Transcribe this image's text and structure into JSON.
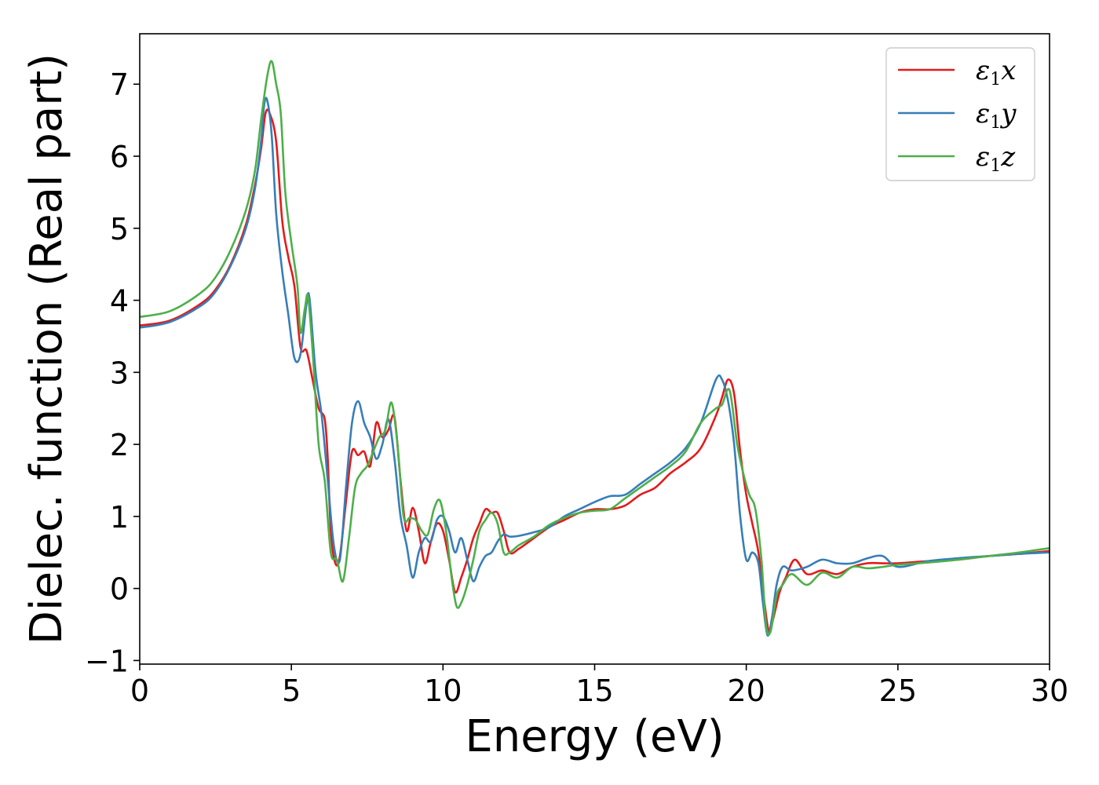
{
  "chart_data": {
    "type": "line",
    "title": "",
    "xlabel": "Energy (eV)",
    "ylabel": "Dielec. function (Real part)",
    "xlim": [
      0,
      30
    ],
    "ylim": [
      -1.05,
      7.7
    ],
    "xticks": [
      0,
      5,
      10,
      15,
      20,
      25,
      30
    ],
    "yticks": [
      -1,
      0,
      1,
      2,
      3,
      4,
      5,
      6,
      7
    ],
    "xtick_labels": [
      "0",
      "5",
      "10",
      "15",
      "20",
      "25",
      "30"
    ],
    "ytick_labels": [
      "−1",
      "0",
      "1",
      "2",
      "3",
      "4",
      "5",
      "6",
      "7"
    ],
    "grid": false,
    "legend_position": "top-right",
    "series": [
      {
        "name": "ε₁x",
        "label_main": "ε",
        "label_sub": "1",
        "label_tail": "x",
        "color": "#e41a1c",
        "x": [
          0,
          1,
          2,
          2.5,
          3,
          3.5,
          3.8,
          4.0,
          4.15,
          4.3,
          4.5,
          4.7,
          4.9,
          5.1,
          5.3,
          5.5,
          5.7,
          5.9,
          6.1,
          6.2,
          6.3,
          6.45,
          6.6,
          6.8,
          7.0,
          7.2,
          7.4,
          7.6,
          7.8,
          8.0,
          8.2,
          8.4,
          8.6,
          8.8,
          9.0,
          9.2,
          9.4,
          9.6,
          9.8,
          10.0,
          10.2,
          10.4,
          10.6,
          10.8,
          11.0,
          11.2,
          11.4,
          11.6,
          11.8,
          12.0,
          12.2,
          12.5,
          13.0,
          13.5,
          14.0,
          14.5,
          15.0,
          15.5,
          16.0,
          16.5,
          17.0,
          17.5,
          18.0,
          18.5,
          19.0,
          19.2,
          19.4,
          19.6,
          19.8,
          20.0,
          20.2,
          20.4,
          20.6,
          20.75,
          20.9,
          21.1,
          21.3,
          21.6,
          22.0,
          22.5,
          23.0,
          23.5,
          24.0,
          24.5,
          25.0,
          26.0,
          27.0,
          28.0,
          29.0,
          30.0
        ],
        "y": [
          3.65,
          3.72,
          3.95,
          4.15,
          4.5,
          5.05,
          5.6,
          6.1,
          6.6,
          6.58,
          6.2,
          5.1,
          4.6,
          4.2,
          3.35,
          3.3,
          2.9,
          2.5,
          2.35,
          1.8,
          0.8,
          0.35,
          0.45,
          1.2,
          1.9,
          1.85,
          1.9,
          1.7,
          2.3,
          2.1,
          2.2,
          2.38,
          1.5,
          0.8,
          1.12,
          0.8,
          0.35,
          0.65,
          0.9,
          0.8,
          0.4,
          -0.05,
          0.15,
          0.4,
          0.7,
          0.9,
          1.1,
          1.05,
          1.05,
          0.8,
          0.5,
          0.55,
          0.7,
          0.85,
          0.95,
          1.05,
          1.1,
          1.1,
          1.15,
          1.3,
          1.4,
          1.6,
          1.75,
          1.95,
          2.4,
          2.65,
          2.9,
          2.7,
          1.9,
          1.3,
          0.9,
          0.5,
          -0.2,
          -0.6,
          -0.4,
          -0.05,
          0.15,
          0.4,
          0.2,
          0.25,
          0.2,
          0.3,
          0.35,
          0.35,
          0.35,
          0.38,
          0.4,
          0.45,
          0.48,
          0.52
        ]
      },
      {
        "name": "ε₁y",
        "label_main": "ε",
        "label_sub": "1",
        "label_tail": "y",
        "color": "#377eb8",
        "x": [
          0,
          1,
          2,
          2.5,
          3,
          3.5,
          3.8,
          4.0,
          4.1,
          4.2,
          4.35,
          4.5,
          4.7,
          4.9,
          5.1,
          5.3,
          5.5,
          5.6,
          5.8,
          6.0,
          6.2,
          6.4,
          6.6,
          6.8,
          7.0,
          7.2,
          7.4,
          7.6,
          7.8,
          8.0,
          8.2,
          8.4,
          8.6,
          8.8,
          9.0,
          9.2,
          9.4,
          9.6,
          9.8,
          10.0,
          10.2,
          10.4,
          10.6,
          10.8,
          11.0,
          11.2,
          11.4,
          11.6,
          11.8,
          12.0,
          12.2,
          12.5,
          13.0,
          13.5,
          14.0,
          14.5,
          15.0,
          15.5,
          16.0,
          16.5,
          17.0,
          17.5,
          18.0,
          18.5,
          19.0,
          19.2,
          19.4,
          19.6,
          19.8,
          20.0,
          20.2,
          20.4,
          20.55,
          20.7,
          20.85,
          21.0,
          21.2,
          21.5,
          22.0,
          22.5,
          23.0,
          23.5,
          24.0,
          24.5,
          25.0,
          26.0,
          27.0,
          28.0,
          29.0,
          30.0
        ],
        "y": [
          3.62,
          3.7,
          3.92,
          4.12,
          4.48,
          5.0,
          5.55,
          6.2,
          6.7,
          6.78,
          6.3,
          5.2,
          4.4,
          3.8,
          3.2,
          3.25,
          3.95,
          4.02,
          3.0,
          2.4,
          1.5,
          0.6,
          0.4,
          1.4,
          2.3,
          2.6,
          2.3,
          2.1,
          1.8,
          2.0,
          2.35,
          1.8,
          1.0,
          0.6,
          0.15,
          0.5,
          0.7,
          0.65,
          0.95,
          1.0,
          0.8,
          0.5,
          0.7,
          0.4,
          0.1,
          0.3,
          0.45,
          0.5,
          0.65,
          0.75,
          0.72,
          0.73,
          0.78,
          0.85,
          1.0,
          1.1,
          1.2,
          1.28,
          1.3,
          1.45,
          1.6,
          1.75,
          1.95,
          2.3,
          2.9,
          2.9,
          2.6,
          2.0,
          1.0,
          0.4,
          0.5,
          0.35,
          -0.2,
          -0.65,
          -0.4,
          0.05,
          0.3,
          0.25,
          0.3,
          0.4,
          0.35,
          0.35,
          0.42,
          0.45,
          0.3,
          0.38,
          0.42,
          0.45,
          0.48,
          0.5
        ]
      },
      {
        "name": "ε₁z",
        "label_main": "ε",
        "label_sub": "1",
        "label_tail": "z",
        "color": "#4daf4a",
        "x": [
          0,
          1,
          2,
          2.5,
          3,
          3.5,
          3.8,
          4.0,
          4.2,
          4.35,
          4.5,
          4.65,
          4.8,
          5.0,
          5.2,
          5.3,
          5.45,
          5.55,
          5.7,
          5.9,
          6.1,
          6.3,
          6.5,
          6.7,
          6.9,
          7.1,
          7.3,
          7.5,
          7.7,
          7.9,
          8.1,
          8.3,
          8.5,
          8.7,
          8.9,
          9.1,
          9.3,
          9.5,
          9.7,
          9.9,
          10.1,
          10.3,
          10.45,
          10.6,
          10.8,
          11.0,
          11.2,
          11.4,
          11.6,
          11.8,
          12.0,
          12.2,
          12.5,
          13.0,
          13.5,
          14.0,
          14.5,
          15.0,
          15.5,
          16.0,
          16.5,
          17.0,
          17.5,
          18.0,
          18.5,
          19.0,
          19.2,
          19.45,
          19.7,
          19.9,
          20.1,
          20.3,
          20.5,
          20.65,
          20.8,
          21.0,
          21.2,
          21.5,
          22.0,
          22.5,
          23.0,
          23.5,
          24.0,
          24.5,
          25.0,
          26.0,
          27.0,
          28.0,
          29.0,
          30.0
        ],
        "y": [
          3.77,
          3.85,
          4.1,
          4.32,
          4.7,
          5.25,
          5.8,
          6.5,
          7.1,
          7.32,
          7.0,
          6.6,
          5.5,
          4.8,
          4.2,
          3.55,
          3.9,
          4.05,
          3.3,
          2.0,
          1.5,
          0.5,
          0.4,
          0.1,
          0.7,
          1.4,
          1.6,
          1.7,
          1.9,
          2.1,
          2.2,
          2.58,
          2.0,
          1.0,
          0.98,
          0.95,
          0.8,
          0.75,
          1.1,
          1.22,
          0.8,
          0.1,
          -0.25,
          -0.2,
          0.05,
          0.4,
          0.8,
          0.95,
          1.05,
          0.9,
          0.5,
          0.5,
          0.6,
          0.72,
          0.88,
          0.98,
          1.05,
          1.08,
          1.1,
          1.25,
          1.4,
          1.55,
          1.7,
          1.9,
          2.3,
          2.5,
          2.55,
          2.75,
          2.0,
          1.6,
          1.3,
          1.1,
          0.4,
          -0.5,
          -0.6,
          -0.1,
          0.05,
          0.2,
          0.05,
          0.22,
          0.15,
          0.3,
          0.28,
          0.3,
          0.33,
          0.36,
          0.4,
          0.45,
          0.5,
          0.56
        ]
      }
    ]
  }
}
